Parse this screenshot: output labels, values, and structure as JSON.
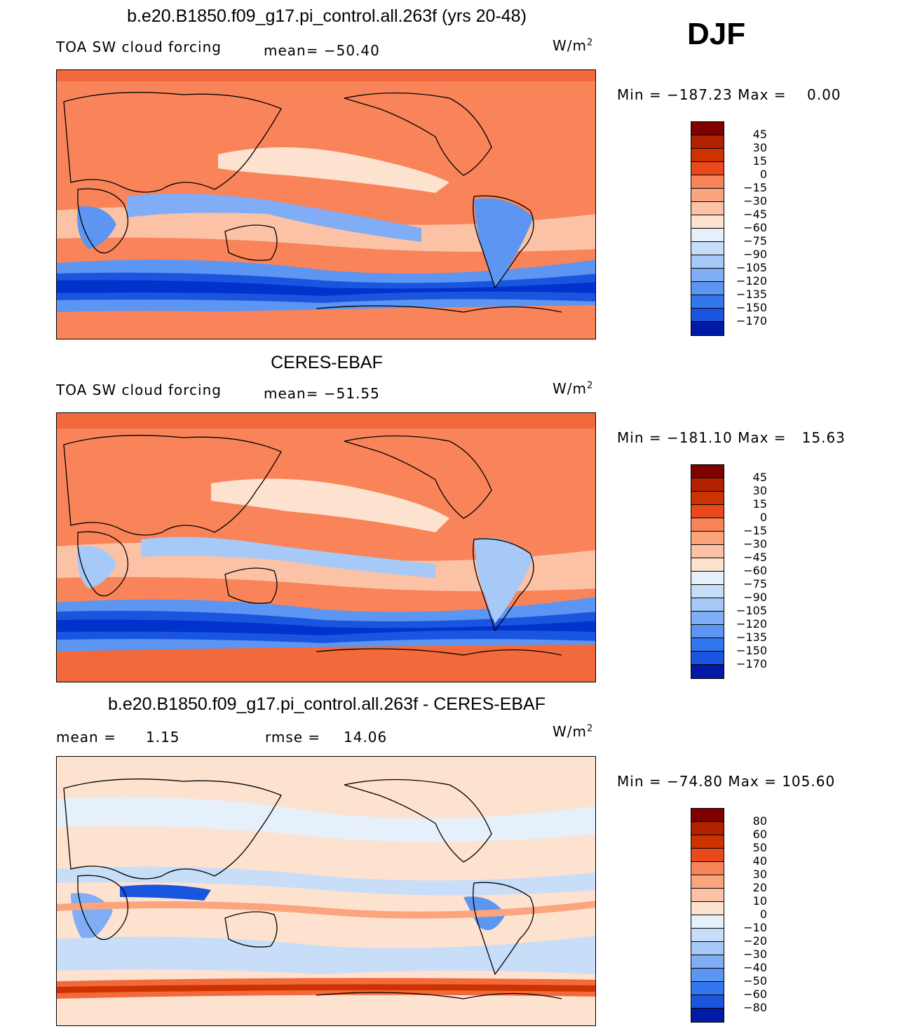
{
  "season": "DJF",
  "colors": {
    "control": [
      "#000080",
      "#001aa6",
      "#0033cc",
      "#1a55e0",
      "#3377ee",
      "#5c95f2",
      "#80adf5",
      "#a6c9f8",
      "#c8ddf8",
      "#e6f0fb",
      "#fde2d0",
      "#fcc2a6",
      "#fba57f",
      "#f9845a",
      "#f26a3c",
      "#e94a1c",
      "#cc3300",
      "#b32200",
      "#800000"
    ],
    "diff": [
      "#000080",
      "#001aa6",
      "#0033cc",
      "#1a55e0",
      "#3377ee",
      "#5c95f2",
      "#80adf5",
      "#a6c9f8",
      "#c8ddf8",
      "#e6f0fb",
      "#fde2d0",
      "#fcc2a6",
      "#fba57f",
      "#f9845a",
      "#f26a3c",
      "#e94a1c",
      "#cc3300",
      "#b32200",
      "#800000"
    ]
  },
  "chart_data": [
    {
      "type": "heatmap",
      "title": "b.e20.B1850.f09_g17.pi_control.all.263f (yrs 20-48)",
      "variable": "TOA SW cloud forcing",
      "mean_label": "mean=  −50.40",
      "units_base": "W/m",
      "units_exp": "2",
      "min_label": "Min",
      "min_value": "−187.23",
      "max_label": "Max",
      "max_value": "0.00",
      "colorbar_levels": [
        "45",
        "30",
        "15",
        "0",
        "−15",
        "−30",
        "−45",
        "−60",
        "−75",
        "−90",
        "−105",
        "−120",
        "−135",
        "−150",
        "−170"
      ]
    },
    {
      "type": "heatmap",
      "title": "CERES-EBAF",
      "variable": "TOA SW cloud forcing",
      "mean_label": "mean=  −51.55",
      "units_base": "W/m",
      "units_exp": "2",
      "min_label": "Min",
      "min_value": "−181.10",
      "max_label": "Max",
      "max_value": "15.63",
      "colorbar_levels": [
        "45",
        "30",
        "15",
        "0",
        "−15",
        "−30",
        "−45",
        "−60",
        "−75",
        "−90",
        "−105",
        "−120",
        "−135",
        "−150",
        "−170"
      ]
    },
    {
      "type": "heatmap",
      "title": "b.e20.B1850.f09_g17.pi_control.all.263f - CERES-EBAF",
      "mean_label": "mean  =",
      "mean_value": "1.15",
      "rmse_label": "rmse  =",
      "rmse_value": "14.06",
      "units_base": "W/m",
      "units_exp": "2",
      "min_label": "Min",
      "min_value": "−74.80",
      "max_label": "Max",
      "max_value": "105.60",
      "colorbar_levels": [
        "80",
        "60",
        "50",
        "40",
        "30",
        "20",
        "10",
        "0",
        "−10",
        "−20",
        "−30",
        "−40",
        "−50",
        "−60",
        "−80"
      ]
    }
  ]
}
